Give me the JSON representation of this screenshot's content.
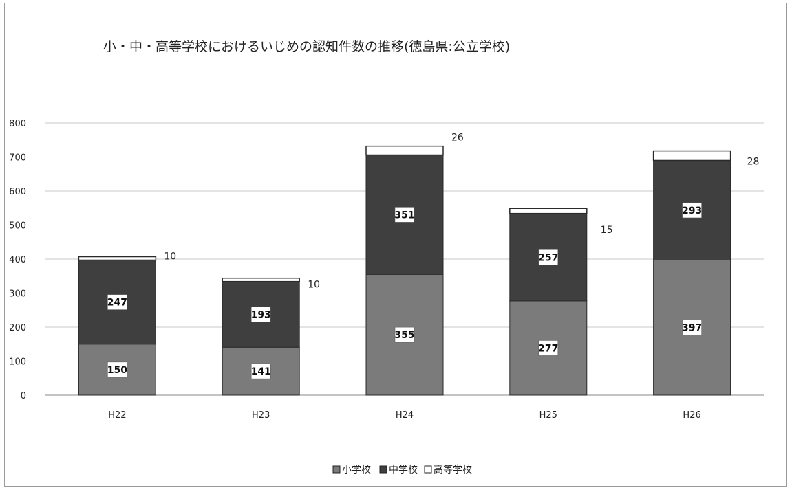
{
  "chart_data": {
    "type": "bar",
    "stacked": true,
    "title": "小・中・高等学校におけるいじめの認知件数の推移(徳島県:公立学校)",
    "categories": [
      "H22",
      "H23",
      "H24",
      "H25",
      "H26"
    ],
    "series": [
      {
        "name": "小学校",
        "values": [
          150,
          141,
          355,
          277,
          397
        ],
        "color": "#7b7b7b"
      },
      {
        "name": "中学校",
        "values": [
          247,
          193,
          351,
          257,
          293
        ],
        "color": "#3f3f3f"
      },
      {
        "name": "高等学校",
        "values": [
          10,
          10,
          26,
          15,
          28
        ],
        "color": "#ffffff"
      }
    ],
    "ylim": [
      0,
      800
    ],
    "yticks": [
      0,
      100,
      200,
      300,
      400,
      500,
      600,
      700,
      800
    ],
    "grid": true,
    "legend_position": "bottom",
    "xlabel": "",
    "ylabel": ""
  }
}
